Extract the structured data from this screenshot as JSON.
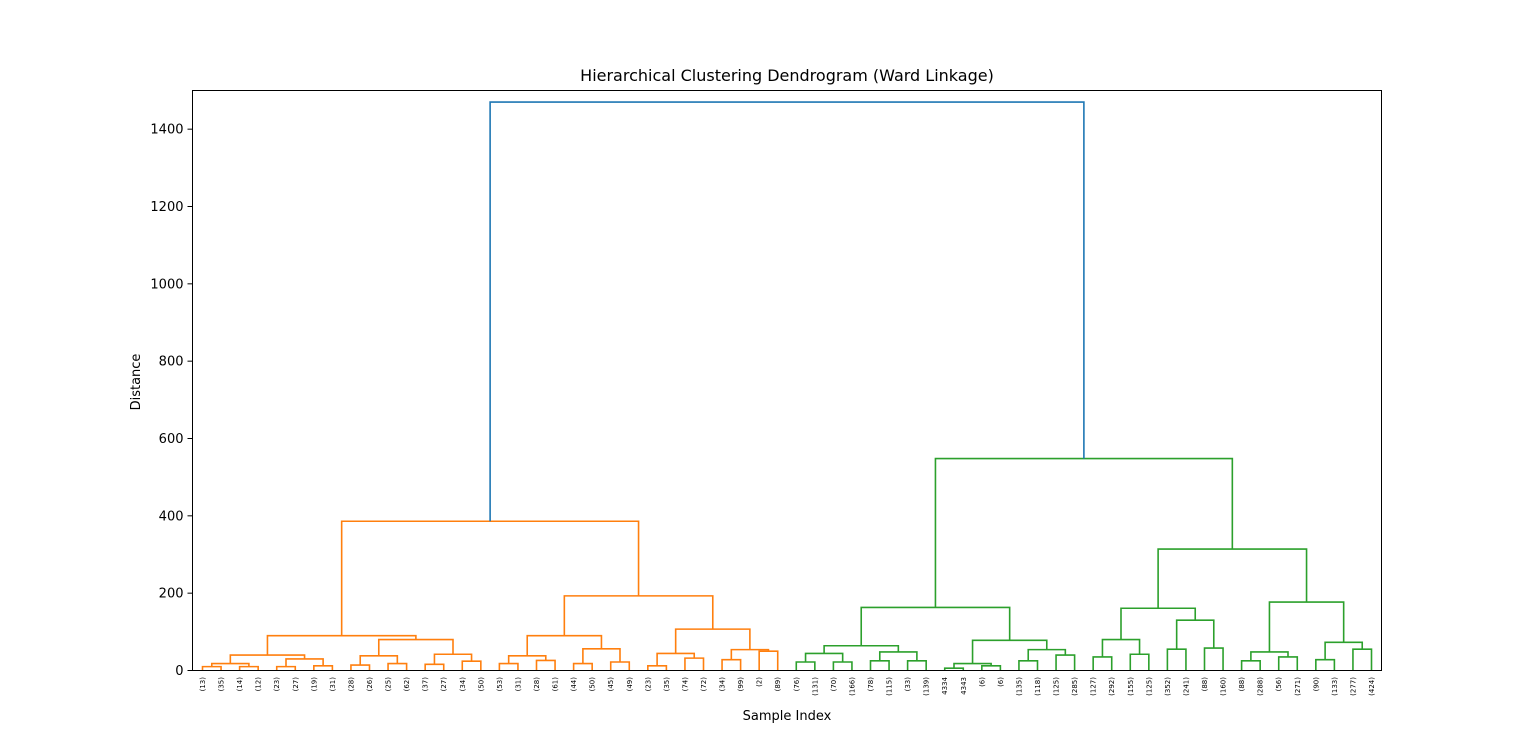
{
  "chart_data": {
    "type": "dendrogram",
    "title": "Hierarchical Clustering Dendrogram (Ward Linkage)",
    "xlabel": "Sample Index",
    "ylabel": "Distance",
    "ylim": [
      0,
      1500
    ],
    "yticks": [
      0,
      200,
      400,
      600,
      800,
      1000,
      1200,
      1400
    ],
    "colors": {
      "cluster_a": "#ff7f0e",
      "cluster_b": "#2ca02c",
      "root": "#1f77b4"
    },
    "leaves": [
      "(13)",
      "(35)",
      "(14)",
      "(12)",
      "(23)",
      "(27)",
      "(19)",
      "(31)",
      "(28)",
      "(26)",
      "(25)",
      "(62)",
      "(37)",
      "(27)",
      "(34)",
      "(50)",
      "(53)",
      "(31)",
      "(28)",
      "(61)",
      "(44)",
      "(50)",
      "(45)",
      "(49)",
      "(23)",
      "(35)",
      "(74)",
      "(72)",
      "(34)",
      "(99)",
      "(2)",
      "(89)",
      "(76)",
      "(131)",
      "(70)",
      "(166)",
      "(78)",
      "(115)",
      "(33)",
      "(139)",
      "4334",
      "4343",
      "(6)",
      "(6)",
      "(135)",
      "(118)",
      "(125)",
      "(285)",
      "(127)",
      "(292)",
      "(155)",
      "(125)",
      "(352)",
      "(241)",
      "(88)",
      "(160)",
      "(88)",
      "(288)",
      "(56)",
      "(271)",
      "(90)",
      "(133)",
      "(277)",
      "(424)"
    ],
    "links": [
      {
        "id": "L1",
        "c": "a",
        "l": "0",
        "r": "1",
        "h": 10
      },
      {
        "id": "L2",
        "c": "a",
        "l": "2",
        "r": "3",
        "h": 10
      },
      {
        "id": "L3",
        "c": "a",
        "l": "L1",
        "r": "L2",
        "h": 18
      },
      {
        "id": "L4",
        "c": "a",
        "l": "4",
        "r": "5",
        "h": 10
      },
      {
        "id": "L5",
        "c": "a",
        "l": "6",
        "r": "7",
        "h": 12
      },
      {
        "id": "L6",
        "c": "a",
        "l": "L4",
        "r": "L5",
        "h": 30
      },
      {
        "id": "L7",
        "c": "a",
        "l": "L3",
        "r": "L6",
        "h": 40
      },
      {
        "id": "L8",
        "c": "a",
        "l": "8",
        "r": "9",
        "h": 14
      },
      {
        "id": "L9",
        "c": "a",
        "l": "10",
        "r": "11",
        "h": 18
      },
      {
        "id": "L10",
        "c": "a",
        "l": "L8",
        "r": "L9",
        "h": 38
      },
      {
        "id": "L11",
        "c": "a",
        "l": "12",
        "r": "13",
        "h": 16
      },
      {
        "id": "L12",
        "c": "a",
        "l": "14",
        "r": "15",
        "h": 24
      },
      {
        "id": "L13",
        "c": "a",
        "l": "L11",
        "r": "L12",
        "h": 42
      },
      {
        "id": "L14",
        "c": "a",
        "l": "L10",
        "r": "L13",
        "h": 80
      },
      {
        "id": "L15",
        "c": "a",
        "l": "L7",
        "r": "L14",
        "h": 90
      },
      {
        "id": "L16",
        "c": "a",
        "l": "16",
        "r": "17",
        "h": 18
      },
      {
        "id": "L17",
        "c": "a",
        "l": "18",
        "r": "19",
        "h": 26
      },
      {
        "id": "L18",
        "c": "a",
        "l": "L16",
        "r": "L17",
        "h": 38
      },
      {
        "id": "L19",
        "c": "a",
        "l": "20",
        "r": "21",
        "h": 18
      },
      {
        "id": "L20",
        "c": "a",
        "l": "22",
        "r": "23",
        "h": 22
      },
      {
        "id": "L21",
        "c": "a",
        "l": "L19",
        "r": "L20",
        "h": 56
      },
      {
        "id": "L22",
        "c": "a",
        "l": "L18",
        "r": "L21",
        "h": 90
      },
      {
        "id": "L23",
        "c": "a",
        "l": "24",
        "r": "25",
        "h": 12
      },
      {
        "id": "L24",
        "c": "a",
        "l": "26",
        "r": "27",
        "h": 32
      },
      {
        "id": "L25",
        "c": "a",
        "l": "L23",
        "r": "L24",
        "h": 44
      },
      {
        "id": "L26",
        "c": "a",
        "l": "28",
        "r": "29",
        "h": 28
      },
      {
        "id": "L27",
        "c": "a",
        "l": "30",
        "r": "31",
        "h": 50
      },
      {
        "id": "L28",
        "c": "a",
        "l": "L26",
        "r": "L27",
        "h": 54
      },
      {
        "id": "L29",
        "c": "a",
        "l": "L25",
        "r": "L28",
        "h": 107
      },
      {
        "id": "L30",
        "c": "a",
        "l": "L22",
        "r": "L29",
        "h": 193
      },
      {
        "id": "L31",
        "c": "a",
        "l": "L15",
        "r": "L30",
        "h": 386
      },
      {
        "id": "L32",
        "c": "b",
        "l": "32",
        "r": "33",
        "h": 22
      },
      {
        "id": "L33",
        "c": "b",
        "l": "34",
        "r": "35",
        "h": 22
      },
      {
        "id": "L34",
        "c": "b",
        "l": "L32",
        "r": "L33",
        "h": 44
      },
      {
        "id": "L35",
        "c": "b",
        "l": "36",
        "r": "37",
        "h": 25
      },
      {
        "id": "L36",
        "c": "b",
        "l": "38",
        "r": "39",
        "h": 25
      },
      {
        "id": "L37",
        "c": "b",
        "l": "L35",
        "r": "L36",
        "h": 48
      },
      {
        "id": "L38",
        "c": "b",
        "l": "L34",
        "r": "L37",
        "h": 64
      },
      {
        "id": "L39",
        "c": "b",
        "l": "40",
        "r": "41",
        "h": 6
      },
      {
        "id": "L40",
        "c": "b",
        "l": "42",
        "r": "43",
        "h": 12
      },
      {
        "id": "L41",
        "c": "b",
        "l": "L39",
        "r": "L40",
        "h": 18
      },
      {
        "id": "L42",
        "c": "b",
        "l": "44",
        "r": "45",
        "h": 25
      },
      {
        "id": "L43",
        "c": "b",
        "l": "46",
        "r": "47",
        "h": 40
      },
      {
        "id": "L44",
        "c": "b",
        "l": "L42",
        "r": "L43",
        "h": 54
      },
      {
        "id": "L45",
        "c": "b",
        "l": "L41",
        "r": "L44",
        "h": 78
      },
      {
        "id": "L46",
        "c": "b",
        "l": "L38",
        "r": "L45",
        "h": 163
      },
      {
        "id": "L47",
        "c": "b",
        "l": "48",
        "r": "49",
        "h": 35
      },
      {
        "id": "L48",
        "c": "b",
        "l": "50",
        "r": "51",
        "h": 42
      },
      {
        "id": "L49",
        "c": "b",
        "l": "L47",
        "r": "L48",
        "h": 80
      },
      {
        "id": "L50",
        "c": "b",
        "l": "52",
        "r": "53",
        "h": 55
      },
      {
        "id": "L51",
        "c": "b",
        "l": "54",
        "r": "55",
        "h": 58
      },
      {
        "id": "L52",
        "c": "b",
        "l": "L50",
        "r": "L51",
        "h": 130
      },
      {
        "id": "L53",
        "c": "b",
        "l": "L49",
        "r": "L52",
        "h": 161
      },
      {
        "id": "L54",
        "c": "b",
        "l": "56",
        "r": "57",
        "h": 25
      },
      {
        "id": "L55",
        "c": "b",
        "l": "58",
        "r": "59",
        "h": 35
      },
      {
        "id": "L56",
        "c": "b",
        "l": "L54",
        "r": "L55",
        "h": 48
      },
      {
        "id": "L57",
        "c": "b",
        "l": "60",
        "r": "61",
        "h": 28
      },
      {
        "id": "L58",
        "c": "b",
        "l": "62",
        "r": "63",
        "h": 55
      },
      {
        "id": "L59",
        "c": "b",
        "l": "L57",
        "r": "L58",
        "h": 73
      },
      {
        "id": "L60",
        "c": "b",
        "l": "L56",
        "r": "L59",
        "h": 177
      },
      {
        "id": "L61",
        "c": "b",
        "l": "L53",
        "r": "L60",
        "h": 314
      },
      {
        "id": "L62",
        "c": "b",
        "l": "L46",
        "r": "L61",
        "h": 548
      },
      {
        "id": "L63",
        "c": "root",
        "l": "L31",
        "r": "L62",
        "h": 1470
      }
    ]
  }
}
